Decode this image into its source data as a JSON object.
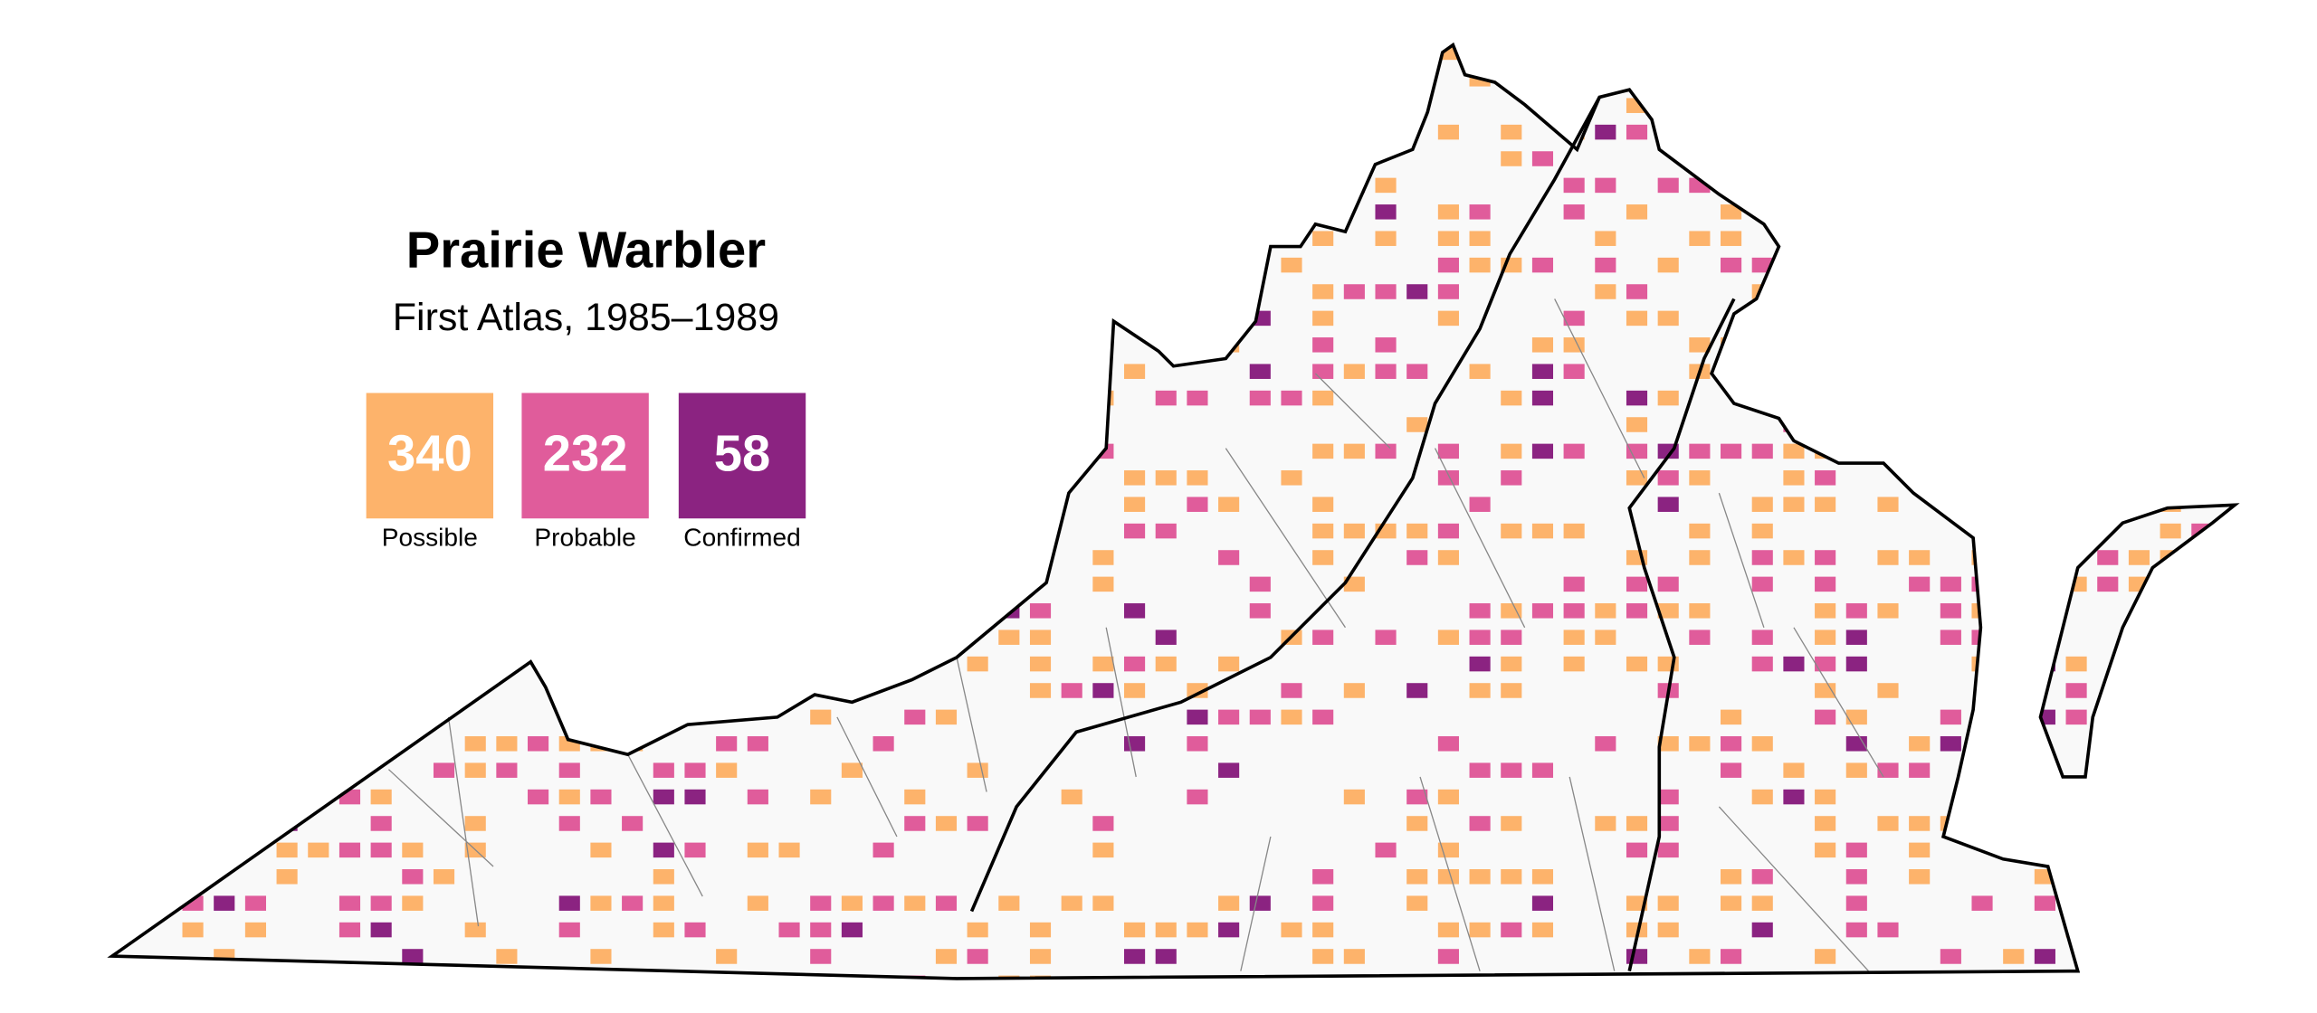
{
  "title": "Prairie Warbler",
  "subtitle": "First Atlas, 1985–1989",
  "legend": [
    {
      "count": 340,
      "label": "Possible",
      "color": "#fdb36b"
    },
    {
      "count": 232,
      "label": "Probable",
      "color": "#e05c9b"
    },
    {
      "count": 58,
      "label": "Confirmed",
      "color": "#8b2381"
    }
  ]
}
